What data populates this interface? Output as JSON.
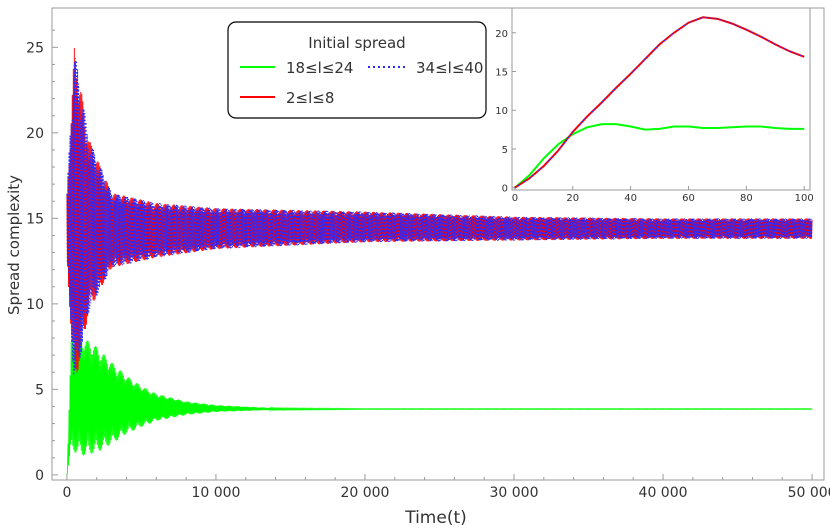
{
  "chart_data": [
    {
      "type": "line",
      "xlabel": "Time(t)",
      "ylabel": "Spread complexity",
      "xlim": [
        -1000,
        50800
      ],
      "ylim": [
        -0.3,
        27.3
      ],
      "x_ticks": [
        0,
        10000,
        20000,
        30000,
        40000,
        50000
      ],
      "x_tick_labels": [
        "0",
        "10 000",
        "20 000",
        "30 000",
        "40 000",
        "50 000"
      ],
      "y_ticks": [
        0,
        5,
        10,
        15,
        20,
        25
      ],
      "y_tick_labels": [
        "0",
        "5",
        "10",
        "15",
        "20",
        "25"
      ],
      "grid": false,
      "legend": {
        "title": "Initial spread",
        "placement": "top-center",
        "entries": [
          "18≤l≤24",
          "34≤l≤40",
          "2≤l≤8"
        ]
      },
      "series": [
        {
          "name": "18≤l≤24",
          "color": "#00ff00",
          "style": "solid",
          "description_points": {
            "x": [
              0,
              300,
              1000,
              2000,
              3000,
              4000,
              5000,
              6000,
              8000,
              10000,
              14000,
              20000,
              50000
            ],
            "center": [
              0,
              4.8,
              4.6,
              4.4,
              4.2,
              4.1,
              4.0,
              3.95,
              3.9,
              3.88,
              3.85,
              3.85,
              3.85
            ],
            "amplitude": [
              0,
              3.4,
              3.5,
              3.1,
              2.4,
              1.7,
              1.2,
              0.8,
              0.4,
              0.2,
              0.05,
              0.02,
              0.02
            ]
          }
        },
        {
          "name": "34≤l≤40",
          "color": "#2a2aff",
          "style": "dotted",
          "description_points": {
            "x": [
              0,
              500,
              1500,
              3000,
              6000,
              10000,
              20000,
              30000,
              40000,
              50000
            ],
            "center": [
              14.5,
              15,
              14.6,
              14.3,
              14.3,
              14.4,
              14.5,
              14.4,
              14.4,
              14.4
            ],
            "amplitude": [
              2,
              10,
              5,
              2.2,
              1.6,
              1.2,
              0.9,
              0.7,
              0.6,
              0.6
            ]
          }
        },
        {
          "name": "2≤l≤8",
          "color": "#ff0000",
          "style": "solid",
          "description_points": {
            "x": [
              0,
              500,
              1500,
              3000,
              6000,
              10000,
              20000,
              30000,
              40000,
              50000
            ],
            "center": [
              14.5,
              15,
              14.6,
              14.3,
              14.3,
              14.4,
              14.5,
              14.4,
              14.4,
              14.4
            ],
            "amplitude": [
              2,
              10,
              5,
              2.2,
              1.6,
              1.2,
              0.9,
              0.7,
              0.6,
              0.6
            ]
          }
        }
      ]
    },
    {
      "type": "line",
      "xlim": [
        -1,
        102
      ],
      "ylim": [
        -0.3,
        23.2
      ],
      "x_ticks": [
        0,
        20,
        40,
        60,
        80,
        100
      ],
      "x_tick_labels": [
        "0",
        "20",
        "40",
        "60",
        "80",
        "100"
      ],
      "y_ticks": [
        0,
        5,
        10,
        15,
        20
      ],
      "y_tick_labels": [
        "0",
        "5",
        "10",
        "15",
        "20"
      ],
      "grid": false,
      "series": [
        {
          "color": "#00ff00",
          "x": [
            0,
            5,
            10,
            15,
            20,
            25,
            30,
            35,
            40,
            45,
            50,
            55,
            60,
            65,
            70,
            75,
            80,
            85,
            90,
            95,
            100
          ],
          "y": [
            0,
            1.6,
            3.8,
            5.6,
            6.9,
            7.8,
            8.2,
            8.2,
            7.9,
            7.5,
            7.6,
            7.9,
            7.9,
            7.7,
            7.7,
            7.8,
            7.9,
            7.9,
            7.7,
            7.6,
            7.6
          ]
        },
        {
          "color": "#ff0000",
          "x": [
            0,
            5,
            10,
            15,
            20,
            25,
            30,
            35,
            40,
            45,
            50,
            55,
            60,
            65,
            70,
            75,
            80,
            85,
            90,
            95,
            100
          ],
          "y": [
            0,
            1.2,
            2.8,
            4.8,
            7.2,
            9.2,
            11.0,
            12.9,
            14.7,
            16.6,
            18.5,
            20.0,
            21.3,
            22.0,
            21.8,
            21.2,
            20.4,
            19.5,
            18.5,
            17.6,
            16.9
          ]
        },
        {
          "color": "#2a2aff",
          "x": [
            0,
            5,
            10,
            15,
            20,
            25,
            30,
            35,
            40,
            45,
            50,
            55,
            60,
            65,
            70,
            75,
            80,
            85,
            90,
            95,
            100
          ],
          "y": [
            0,
            1.2,
            2.8,
            4.8,
            7.2,
            9.2,
            11.0,
            12.9,
            14.7,
            16.6,
            18.5,
            20.0,
            21.3,
            22.0,
            21.8,
            21.2,
            20.4,
            19.5,
            18.5,
            17.6,
            16.9
          ]
        }
      ]
    }
  ]
}
